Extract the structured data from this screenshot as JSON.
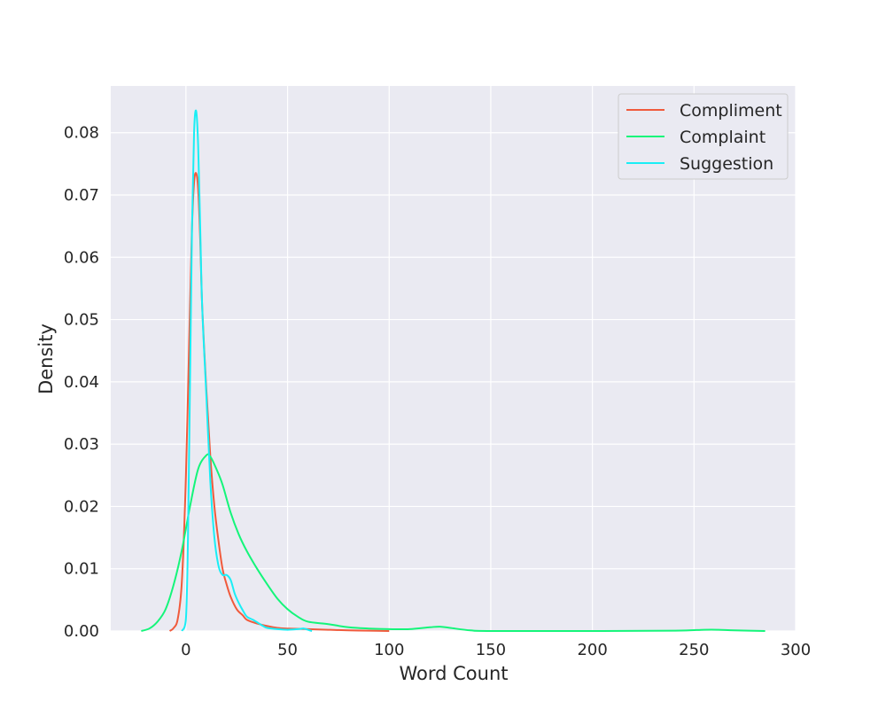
{
  "chart_data": {
    "type": "line",
    "title": "",
    "xlabel": "Word Count",
    "ylabel": "Density",
    "xlim": [
      -37,
      300
    ],
    "ylim": [
      0,
      0.0875
    ],
    "x_ticks": [
      0,
      50,
      100,
      150,
      200,
      250,
      300
    ],
    "x_tick_labels": [
      "0",
      "50",
      "100",
      "150",
      "200",
      "250",
      "300"
    ],
    "y_ticks": [
      0,
      0.01,
      0.02,
      0.03,
      0.04,
      0.05,
      0.06,
      0.07,
      0.08
    ],
    "y_tick_labels": [
      "0.00",
      "0.01",
      "0.02",
      "0.03",
      "0.04",
      "0.05",
      "0.06",
      "0.07",
      "0.08"
    ],
    "grid": true,
    "legend_position": "top-right",
    "colors": {
      "plot_background": "#eaeaf2",
      "grid": "#ffffff",
      "text": "#262626"
    },
    "series": [
      {
        "name": "Compliment",
        "color": "#f05a3c",
        "x": [
          -8,
          -6,
          -4,
          -2,
          0,
          2,
          3,
          4,
          5,
          6,
          7,
          8,
          10,
          12,
          14,
          16,
          18,
          20,
          22,
          25,
          28,
          30,
          35,
          40,
          45,
          50,
          60,
          70,
          80,
          90,
          100
        ],
        "y": [
          0,
          0.0005,
          0.002,
          0.008,
          0.025,
          0.052,
          0.065,
          0.072,
          0.0735,
          0.071,
          0.063,
          0.052,
          0.039,
          0.028,
          0.02,
          0.0145,
          0.01,
          0.0075,
          0.0055,
          0.0035,
          0.0025,
          0.0018,
          0.0012,
          0.0008,
          0.0005,
          0.0004,
          0.0003,
          0.0002,
          0.0001,
          5e-05,
          0
        ]
      },
      {
        "name": "Complaint",
        "color": "#14f57a",
        "x": [
          -22,
          -18,
          -14,
          -10,
          -6,
          -2,
          2,
          6,
          10,
          12,
          15,
          18,
          22,
          26,
          30,
          35,
          40,
          45,
          50,
          55,
          60,
          70,
          80,
          90,
          100,
          110,
          120,
          125,
          130,
          140,
          150,
          200,
          240,
          255,
          262,
          270,
          285
        ],
        "y": [
          0,
          0.0004,
          0.0015,
          0.0035,
          0.0075,
          0.013,
          0.02,
          0.026,
          0.0282,
          0.028,
          0.026,
          0.0235,
          0.019,
          0.0155,
          0.0128,
          0.01,
          0.0075,
          0.0052,
          0.0035,
          0.0023,
          0.0015,
          0.0011,
          0.0006,
          0.0004,
          0.0003,
          0.0003,
          0.0006,
          0.0007,
          0.0005,
          0.0001,
          0,
          0,
          5e-05,
          0.0002,
          0.0002,
          0.0001,
          0
        ]
      },
      {
        "name": "Suggestion",
        "color": "#19eef5",
        "x": [
          -2,
          0,
          1,
          2,
          3,
          4,
          5,
          6,
          7,
          8,
          10,
          12,
          14,
          16,
          18,
          20,
          22,
          24,
          26,
          28,
          30,
          33,
          36,
          38,
          40,
          45,
          50,
          55,
          58,
          60,
          62
        ],
        "y": [
          0,
          0.002,
          0.015,
          0.04,
          0.065,
          0.08,
          0.0835,
          0.078,
          0.065,
          0.052,
          0.038,
          0.024,
          0.015,
          0.0105,
          0.009,
          0.009,
          0.0082,
          0.006,
          0.0045,
          0.0033,
          0.0023,
          0.0018,
          0.0012,
          0.0008,
          0.0005,
          0.0003,
          0.0002,
          0.0003,
          0.0004,
          0.0002,
          0
        ]
      }
    ]
  }
}
